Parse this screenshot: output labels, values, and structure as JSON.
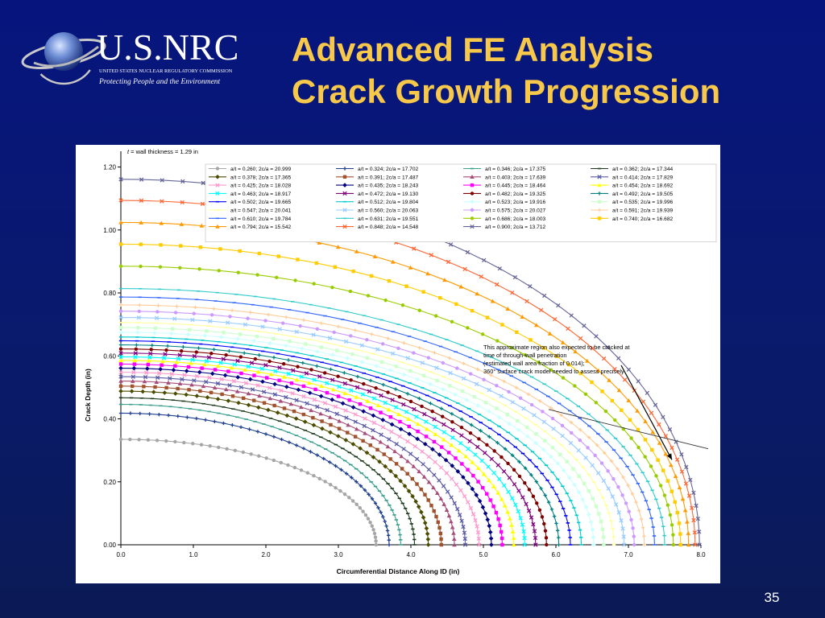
{
  "logo": {
    "wordmark": "U.S.NRC",
    "org_line": "UNITED STATES NUCLEAR REGULATORY COMMISSION",
    "tagline": "Protecting People and the Environment",
    "icon": "globe-orbit-icon"
  },
  "title": {
    "line1": "Advanced FE Analysis",
    "line2": "Crack Growth Progression"
  },
  "page_number": "35",
  "colors": {
    "background": "#06157e",
    "title": "#f7c84a",
    "panel": "#ffffff"
  },
  "chart_data": {
    "type": "line",
    "title": "",
    "wall_note_t": "t",
    "wall_note_rest": " = wall thickness = 1.29 in",
    "xlabel": "Circumferential Distance Along ID (in)",
    "ylabel": "Crack Depth (in)",
    "xlim": [
      0,
      8
    ],
    "ylim": [
      0,
      1.25
    ],
    "xticks": [
      "0.0",
      "1.0",
      "2.0",
      "3.0",
      "4.0",
      "5.0",
      "6.0",
      "7.0",
      "8.0"
    ],
    "yticks": [
      "0.00",
      "0.20",
      "0.40",
      "0.60",
      "0.80",
      "1.00",
      "1.20"
    ],
    "grid": false,
    "legend_position": "top",
    "annotation": {
      "lines": [
        "This approximate region also expected to be cracked at",
        "time of through-wall penetration",
        "(estimated wall area fraction of 0.014);",
        "360° surface crack model needed to assess precisely"
      ],
      "arrow_from": [
        6.9,
        0.57
      ],
      "arrow_to": [
        7.6,
        0.27
      ],
      "line_from": [
        5.9,
        0.43
      ],
      "line_to": [
        8.1,
        0.305
      ]
    },
    "series": [
      {
        "name": "a/t = 0.260; 2c/a = 20.999",
        "depth": 0.335,
        "half_length": 3.52,
        "color": "#a6a6a6",
        "marker": "circle"
      },
      {
        "name": "a/t = 0.324; 2c/a = 17.702",
        "depth": 0.418,
        "half_length": 3.7,
        "color": "#1f3f8f",
        "marker": "plus"
      },
      {
        "name": "a/t = 0.346; 2c/a = 17.375",
        "depth": 0.446,
        "half_length": 3.86,
        "color": "#3a9e8c",
        "marker": "dash"
      },
      {
        "name": "a/t = 0.362; 2c/a = 17.344",
        "depth": 0.467,
        "half_length": 4.05,
        "color": "#1c3a1c",
        "marker": "dash"
      },
      {
        "name": "a/t = 0.378; 2c/a = 17.365",
        "depth": 0.488,
        "half_length": 4.24,
        "color": "#4b4b00",
        "marker": "diamond"
      },
      {
        "name": "a/t = 0.391; 2c/a = 17.487",
        "depth": 0.504,
        "half_length": 4.42,
        "color": "#a0522d",
        "marker": "square"
      },
      {
        "name": "a/t = 0.403; 2c/a = 17.639",
        "depth": 0.52,
        "half_length": 4.6,
        "color": "#a64d79",
        "marker": "triangle"
      },
      {
        "name": "a/t = 0.414; 2c/a = 17.829",
        "depth": 0.534,
        "half_length": 4.75,
        "color": "#5a5aa8",
        "marker": "x"
      },
      {
        "name": "a/t = 0.425; 2c/a = 18.028",
        "depth": 0.548,
        "half_length": 4.94,
        "color": "#ff99cc",
        "marker": "x"
      },
      {
        "name": "a/t = 0.435; 2c/a = 18.243",
        "depth": 0.561,
        "half_length": 5.11,
        "color": "#000080",
        "marker": "diamond"
      },
      {
        "name": "a/t = 0.445; 2c/a = 18.464",
        "depth": 0.574,
        "half_length": 5.26,
        "color": "#ff00ff",
        "marker": "square"
      },
      {
        "name": "a/t = 0.454; 2c/a = 18.692",
        "depth": 0.586,
        "half_length": 5.42,
        "color": "#ffff00",
        "marker": "triangle"
      },
      {
        "name": "a/t = 0.463; 2c/a = 18.917",
        "depth": 0.597,
        "half_length": 5.57,
        "color": "#00ffff",
        "marker": "x"
      },
      {
        "name": "a/t = 0.472; 2c/a = 19.130",
        "depth": 0.609,
        "half_length": 5.72,
        "color": "#800080",
        "marker": "x"
      },
      {
        "name": "a/t = 0.482; 2c/a = 19.325",
        "depth": 0.622,
        "half_length": 5.87,
        "color": "#800000",
        "marker": "circle"
      },
      {
        "name": "a/t = 0.492; 2c/a = 19.505",
        "depth": 0.635,
        "half_length": 6.04,
        "color": "#008080",
        "marker": "plus"
      },
      {
        "name": "a/t = 0.502; 2c/a = 19.665",
        "depth": 0.648,
        "half_length": 6.2,
        "color": "#0000ff",
        "marker": "dash"
      },
      {
        "name": "a/t = 0.512; 2c/a = 19.804",
        "depth": 0.66,
        "half_length": 6.35,
        "color": "#00cccc",
        "marker": "dash"
      },
      {
        "name": "a/t = 0.523; 2c/a = 19.916",
        "depth": 0.675,
        "half_length": 6.52,
        "color": "#ccffff",
        "marker": "diamond"
      },
      {
        "name": "a/t = 0.535; 2c/a = 19.996",
        "depth": 0.69,
        "half_length": 6.66,
        "color": "#ccffcc",
        "marker": "square"
      },
      {
        "name": "a/t = 0.547; 2c/a = 20.041",
        "depth": 0.706,
        "half_length": 6.8,
        "color": "#ffff99",
        "marker": "dash"
      },
      {
        "name": "a/t = 0.560; 2c/a = 20.063",
        "depth": 0.722,
        "half_length": 6.94,
        "color": "#99ccff",
        "marker": "x"
      },
      {
        "name": "a/t = 0.575; 2c/a = 20.027",
        "depth": 0.742,
        "half_length": 7.08,
        "color": "#cc99ff",
        "marker": "circle"
      },
      {
        "name": "a/t = 0.591; 2c/a = 19.939",
        "depth": 0.762,
        "half_length": 7.22,
        "color": "#ffcc99",
        "marker": "plus"
      },
      {
        "name": "a/t = 0.610; 2c/a = 19.784",
        "depth": 0.787,
        "half_length": 7.36,
        "color": "#3366ff",
        "marker": "dash"
      },
      {
        "name": "a/t = 0.631; 2c/a = 19.551",
        "depth": 0.814,
        "half_length": 7.5,
        "color": "#33cccc",
        "marker": "dash"
      },
      {
        "name": "a/t = 0.686; 2c/a = 18.003",
        "depth": 0.885,
        "half_length": 7.62,
        "color": "#99cc00",
        "marker": "circle"
      },
      {
        "name": "a/t = 0.740; 2c/a = 16.682",
        "depth": 0.955,
        "half_length": 7.72,
        "color": "#ffcc00",
        "marker": "square"
      },
      {
        "name": "a/t = 0.794; 2c/a = 15.542",
        "depth": 1.024,
        "half_length": 7.83,
        "color": "#ff9900",
        "marker": "triangle"
      },
      {
        "name": "a/t = 0.848; 2c/a = 14.548",
        "depth": 1.094,
        "half_length": 7.92,
        "color": "#ff6633",
        "marker": "x"
      },
      {
        "name": "a/t = 0.900; 2c/a = 13.712",
        "depth": 1.161,
        "half_length": 7.98,
        "color": "#666699",
        "marker": "x"
      }
    ]
  }
}
